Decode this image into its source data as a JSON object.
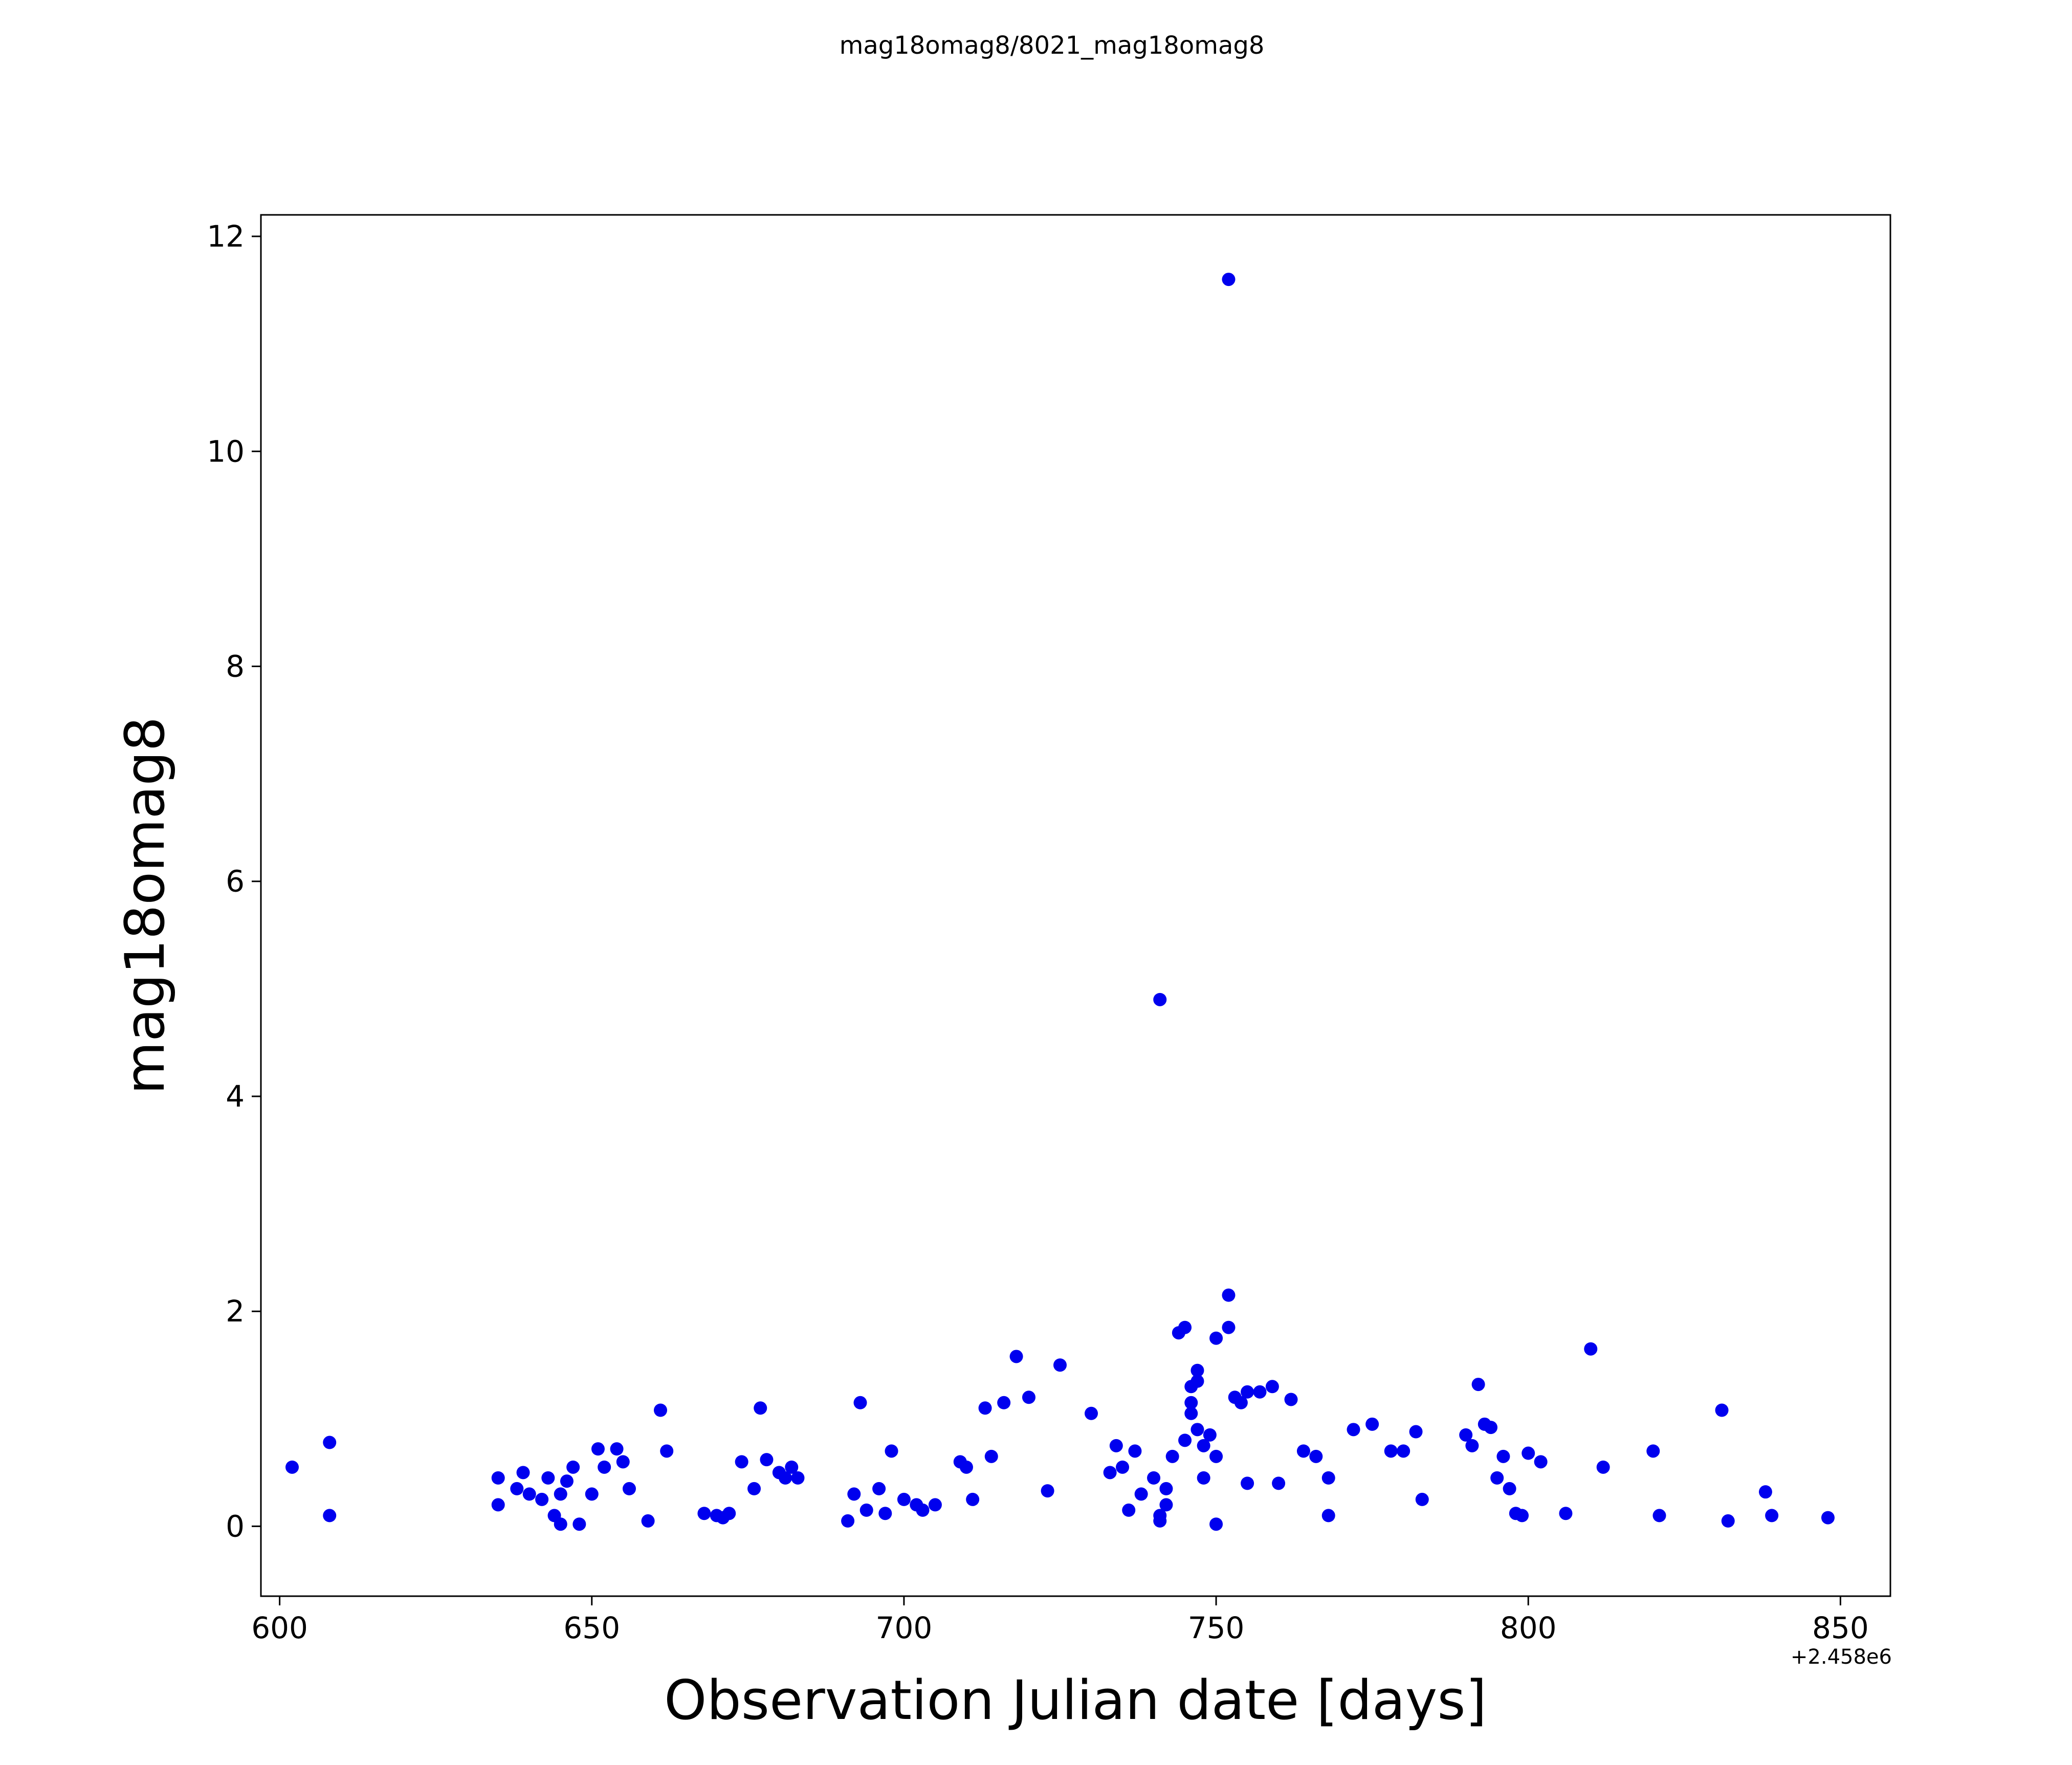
{
  "figure": {
    "title": "mag18omag8/8021_mag18omag8"
  },
  "chart_data": {
    "type": "scatter",
    "title": "mag18omag8/8021_mag18omag8",
    "xlabel": "Observation Julian date [days]",
    "ylabel": "mag18omag8",
    "x_offset_text": "+2.458e6",
    "xlim": [
      597,
      858
    ],
    "ylim": [
      -0.65,
      12.2
    ],
    "xticks": [
      600,
      650,
      700,
      750,
      800,
      850
    ],
    "yticks": [
      0,
      2,
      4,
      6,
      8,
      10,
      12
    ],
    "grid": false,
    "legend": null,
    "marker_color": "#0000ee",
    "marker_radius": 13,
    "points": [
      [
        602,
        0.55
      ],
      [
        608,
        0.78
      ],
      [
        608,
        0.1
      ],
      [
        635,
        0.45
      ],
      [
        635,
        0.2
      ],
      [
        638,
        0.35
      ],
      [
        639,
        0.5
      ],
      [
        640,
        0.3
      ],
      [
        642,
        0.25
      ],
      [
        643,
        0.45
      ],
      [
        644,
        0.1
      ],
      [
        645,
        0.3
      ],
      [
        645,
        0.02
      ],
      [
        646,
        0.42
      ],
      [
        647,
        0.55
      ],
      [
        648,
        0.02
      ],
      [
        650,
        0.3
      ],
      [
        651,
        0.72
      ],
      [
        652,
        0.55
      ],
      [
        654,
        0.72
      ],
      [
        655,
        0.6
      ],
      [
        656,
        0.35
      ],
      [
        659,
        0.05
      ],
      [
        661,
        1.08
      ],
      [
        662,
        0.7
      ],
      [
        668,
        0.12
      ],
      [
        670,
        0.1
      ],
      [
        671,
        0.08
      ],
      [
        672,
        0.12
      ],
      [
        674,
        0.6
      ],
      [
        676,
        0.35
      ],
      [
        677,
        1.1
      ],
      [
        678,
        0.62
      ],
      [
        680,
        0.5
      ],
      [
        681,
        0.45
      ],
      [
        682,
        0.55
      ],
      [
        683,
        0.45
      ],
      [
        691,
        0.05
      ],
      [
        692,
        0.3
      ],
      [
        693,
        1.15
      ],
      [
        694,
        0.15
      ],
      [
        696,
        0.35
      ],
      [
        697,
        0.12
      ],
      [
        698,
        0.7
      ],
      [
        700,
        0.25
      ],
      [
        702,
        0.2
      ],
      [
        703,
        0.15
      ],
      [
        705,
        0.2
      ],
      [
        709,
        0.6
      ],
      [
        710,
        0.55
      ],
      [
        711,
        0.25
      ],
      [
        713,
        1.1
      ],
      [
        714,
        0.65
      ],
      [
        716,
        1.15
      ],
      [
        718,
        1.58
      ],
      [
        720,
        1.2
      ],
      [
        723,
        0.33
      ],
      [
        725,
        1.5
      ],
      [
        730,
        1.05
      ],
      [
        733,
        0.5
      ],
      [
        734,
        0.75
      ],
      [
        735,
        0.55
      ],
      [
        736,
        0.15
      ],
      [
        737,
        0.7
      ],
      [
        738,
        0.3
      ],
      [
        741,
        4.9
      ],
      [
        740,
        0.45
      ],
      [
        741,
        0.1
      ],
      [
        741,
        0.05
      ],
      [
        742,
        0.35
      ],
      [
        742,
        0.2
      ],
      [
        743,
        0.65
      ],
      [
        744,
        1.8
      ],
      [
        745,
        1.85
      ],
      [
        745,
        0.8
      ],
      [
        746,
        1.3
      ],
      [
        746,
        1.15
      ],
      [
        746,
        1.05
      ],
      [
        747,
        1.45
      ],
      [
        747,
        1.35
      ],
      [
        747,
        0.9
      ],
      [
        748,
        0.75
      ],
      [
        748,
        0.45
      ],
      [
        749,
        0.85
      ],
      [
        750,
        1.75
      ],
      [
        750,
        0.65
      ],
      [
        750,
        0.02
      ],
      [
        752,
        11.6
      ],
      [
        752,
        2.15
      ],
      [
        752,
        1.85
      ],
      [
        753,
        1.2
      ],
      [
        754,
        1.15
      ],
      [
        755,
        1.25
      ],
      [
        755,
        0.4
      ],
      [
        757,
        1.25
      ],
      [
        759,
        1.3
      ],
      [
        760,
        0.4
      ],
      [
        762,
        1.18
      ],
      [
        764,
        0.7
      ],
      [
        766,
        0.65
      ],
      [
        768,
        0.45
      ],
      [
        768,
        0.1
      ],
      [
        772,
        0.9
      ],
      [
        775,
        0.95
      ],
      [
        778,
        0.7
      ],
      [
        780,
        0.7
      ],
      [
        782,
        0.88
      ],
      [
        783,
        0.25
      ],
      [
        790,
        0.85
      ],
      [
        791,
        0.75
      ],
      [
        792,
        1.32
      ],
      [
        793,
        0.95
      ],
      [
        794,
        0.92
      ],
      [
        795,
        0.45
      ],
      [
        796,
        0.65
      ],
      [
        797,
        0.35
      ],
      [
        798,
        0.12
      ],
      [
        799,
        0.1
      ],
      [
        800,
        0.68
      ],
      [
        802,
        0.6
      ],
      [
        806,
        0.12
      ],
      [
        810,
        1.65
      ],
      [
        812,
        0.55
      ],
      [
        820,
        0.7
      ],
      [
        821,
        0.1
      ],
      [
        831,
        1.08
      ],
      [
        832,
        0.05
      ],
      [
        838,
        0.32
      ],
      [
        839,
        0.1
      ],
      [
        848,
        0.08
      ]
    ]
  },
  "layout_labels": {
    "x_tick_names": [
      "600",
      "650",
      "700",
      "750",
      "800",
      "850"
    ],
    "y_tick_names": [
      "0",
      "2",
      "4",
      "6",
      "8",
      "10",
      "12"
    ]
  }
}
